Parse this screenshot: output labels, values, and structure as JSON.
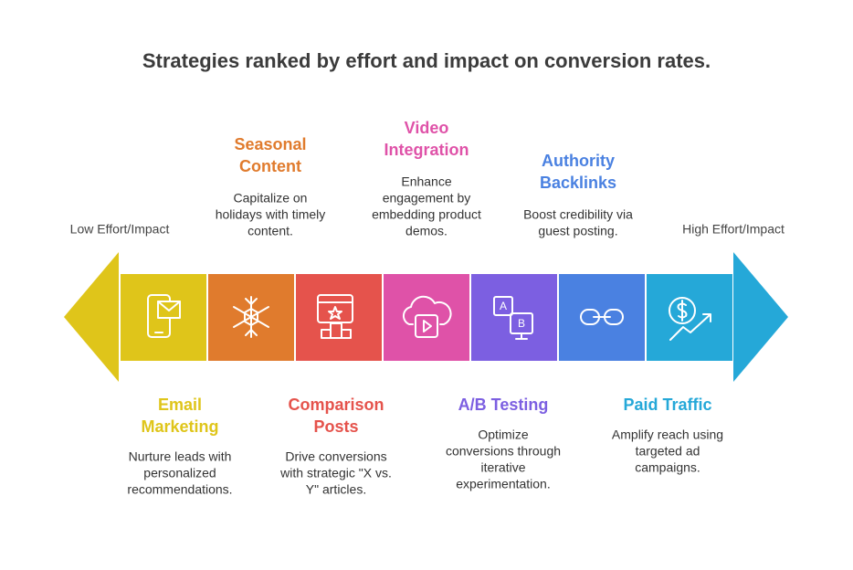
{
  "title": "Strategies ranked by effort and impact on conversion rates.",
  "left_label": "Low Effort/Impact",
  "right_label": "High Effort/Impact",
  "strategies": [
    {
      "title": [
        "Email",
        "Marketing"
      ],
      "description": [
        "Nurture leads with",
        "personalized",
        "recommendations."
      ],
      "color": "#dfc51a"
    },
    {
      "title": [
        "Seasonal",
        "Content"
      ],
      "description": [
        "Capitalize on",
        "holidays with timely",
        "content."
      ],
      "color": "#e07b2d"
    },
    {
      "title": [
        "Comparison",
        "Posts"
      ],
      "description": [
        "Drive conversions",
        "with strategic \"X vs.",
        "Y\" articles."
      ],
      "color": "#e5534c"
    },
    {
      "title": [
        "Video",
        "Integration"
      ],
      "description": [
        "Enhance",
        "engagement by",
        "embedding product",
        "demos."
      ],
      "color": "#df52a8"
    },
    {
      "title": [
        "A/B Testing"
      ],
      "description": [
        "Optimize",
        "conversions through",
        "iterative",
        "experimentation."
      ],
      "color": "#7c5fe1"
    },
    {
      "title": [
        "Authority",
        "Backlinks"
      ],
      "description": [
        "Boost credibility via",
        "guest posting."
      ],
      "color": "#4a81e1"
    },
    {
      "title": [
        "Paid Traffic"
      ],
      "description": [
        "Amplify reach using",
        "targeted ad",
        "campaigns."
      ],
      "color": "#25a8d8"
    }
  ]
}
